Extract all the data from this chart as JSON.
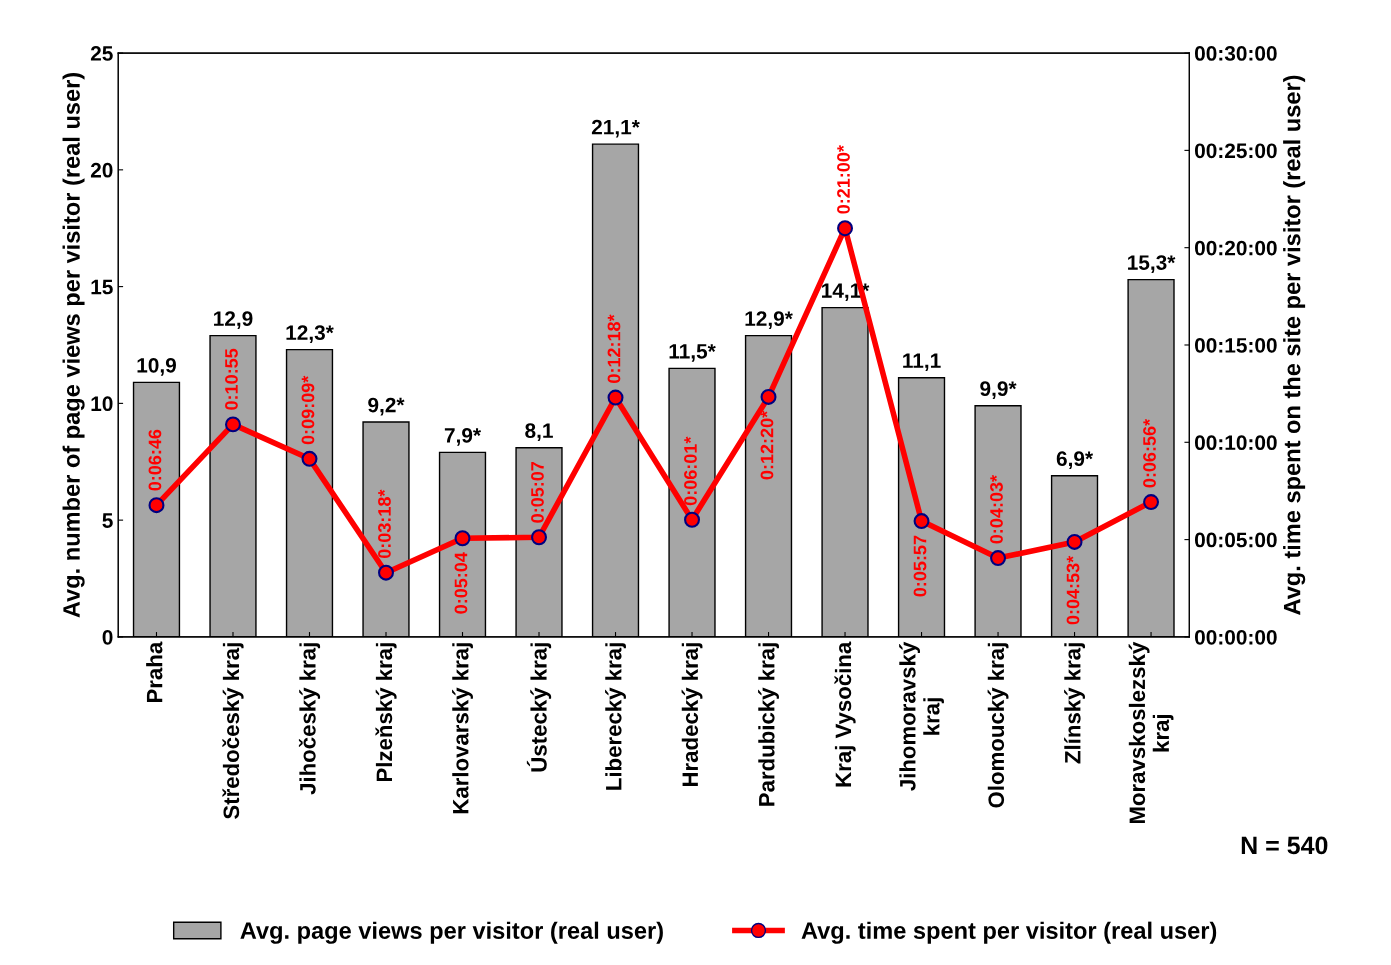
{
  "chart_data": {
    "type": "bar",
    "categories": [
      "Praha",
      "Středočeský kraj",
      "Jihočeský kraj",
      "Plzeňský kraj",
      "Karlovarský kraj",
      "Ústecký kraj",
      "Liberecký kraj",
      "Hradecký kraj",
      "Pardubický kraj",
      "Kraj Vysočina",
      "Jihomoravský\nkraj",
      "Olomoucký kraj",
      "Zlínský kraj",
      "Moravskoslezský\nkraj"
    ],
    "ylabel": "Avg. number of page views per visitor (real user)",
    "y2label": "Avg. time spent on the site per visitor (real user)",
    "ylim": [
      0,
      25
    ],
    "yticks": [
      0,
      5,
      10,
      15,
      20,
      25
    ],
    "y2lim": [
      0,
      30
    ],
    "y2ticks": [
      {
        "value": 0,
        "label": "00:00:00"
      },
      {
        "value": 5,
        "label": "00:05:00"
      },
      {
        "value": 10,
        "label": "00:10:00"
      },
      {
        "value": 15,
        "label": "00:15:00"
      },
      {
        "value": 20,
        "label": "00:20:00"
      },
      {
        "value": 25,
        "label": "00:25:00"
      },
      {
        "value": 30,
        "label": "00:30:00"
      }
    ],
    "series": [
      {
        "name": "Avg. page views per visitor (real user)",
        "color": "#a6a6a6",
        "values": [
          10.9,
          12.9,
          12.3,
          9.2,
          7.9,
          8.1,
          21.1,
          11.5,
          12.9,
          14.1,
          11.1,
          9.9,
          6.9,
          15.3
        ],
        "value_labels": [
          "10,9",
          "12,9",
          "12,3*",
          "9,2*",
          "7,9*",
          "8,1",
          "21,1*",
          "11,5*",
          "12,9*",
          "14,1*",
          "11,1",
          "9,9*",
          "6,9*",
          "15,3*"
        ]
      },
      {
        "name": "Avg. time spent per visitor (real user)",
        "type": "line",
        "axis": "y2",
        "color": "#ff0000",
        "marker": "circle",
        "values": [
          6.77,
          10.92,
          9.15,
          3.3,
          5.07,
          5.12,
          12.3,
          6.02,
          12.33,
          21.0,
          5.95,
          4.05,
          4.88,
          6.93
        ],
        "value_labels": [
          "0:06:46",
          "0:10:55",
          "0:09:09*",
          "0:03:18*",
          "0:05:04",
          "0:05:07",
          "0:12:18*",
          "0:06:01*",
          "0:12:20*",
          "0:21:00*",
          "0:05:57",
          "0:04:03*",
          "0:04:53*",
          "0:06:56*"
        ]
      }
    ],
    "annotations": [
      "N = 540"
    ],
    "grid": false,
    "legend": "bottom"
  }
}
